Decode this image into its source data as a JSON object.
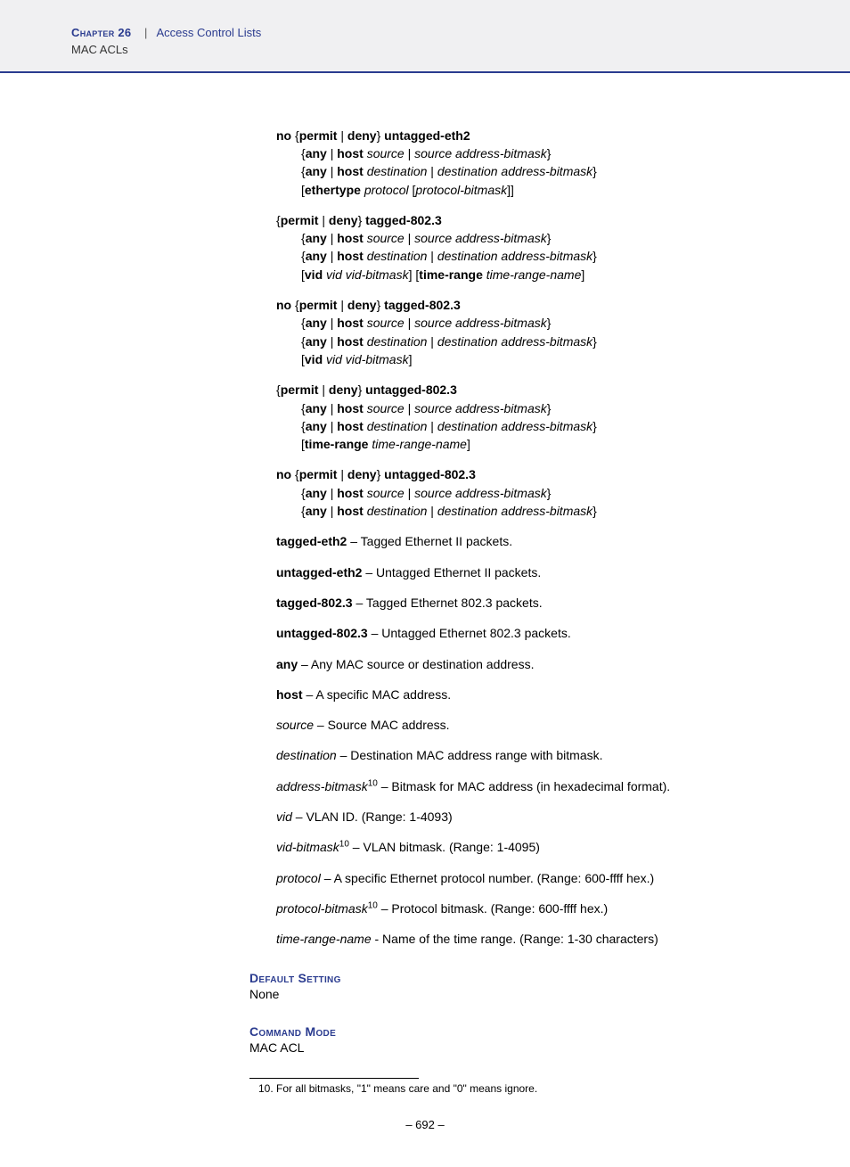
{
  "header": {
    "chapter": "Chapter 26",
    "divider": "|",
    "breadcrumb": "Access Control Lists",
    "subsection": "MAC ACLs"
  },
  "syntax": [
    {
      "lead": [
        {
          "t": "no ",
          "b": true
        },
        {
          "t": "{"
        },
        {
          "t": "permit",
          "b": true
        },
        {
          "t": " | "
        },
        {
          "t": "deny",
          "b": true
        },
        {
          "t": "} "
        },
        {
          "t": "untagged-eth2",
          "b": true
        }
      ],
      "lines": [
        [
          {
            "t": "{"
          },
          {
            "t": "any",
            "b": true
          },
          {
            "t": " | "
          },
          {
            "t": "host",
            "b": true
          },
          {
            "t": " "
          },
          {
            "t": "source",
            "i": true
          },
          {
            "t": " | "
          },
          {
            "t": "source address-bitmask",
            "i": true
          },
          {
            "t": "}"
          }
        ],
        [
          {
            "t": "{"
          },
          {
            "t": "any",
            "b": true
          },
          {
            "t": " | "
          },
          {
            "t": "host",
            "b": true
          },
          {
            "t": " "
          },
          {
            "t": "destination",
            "i": true
          },
          {
            "t": " | "
          },
          {
            "t": "destination address-bitmask",
            "i": true
          },
          {
            "t": "}"
          }
        ],
        [
          {
            "t": "["
          },
          {
            "t": "ethertype",
            "b": true
          },
          {
            "t": " "
          },
          {
            "t": "protocol",
            "i": true
          },
          {
            "t": " ["
          },
          {
            "t": "protocol-bitmask",
            "i": true
          },
          {
            "t": "]]"
          }
        ]
      ]
    },
    {
      "lead": [
        {
          "t": "{"
        },
        {
          "t": "permit",
          "b": true
        },
        {
          "t": " | "
        },
        {
          "t": "deny",
          "b": true
        },
        {
          "t": "} "
        },
        {
          "t": "tagged-802.3",
          "b": true
        }
      ],
      "lines": [
        [
          {
            "t": "{"
          },
          {
            "t": "any",
            "b": true
          },
          {
            "t": " | "
          },
          {
            "t": "host",
            "b": true
          },
          {
            "t": " "
          },
          {
            "t": "source",
            "i": true
          },
          {
            "t": " | "
          },
          {
            "t": "source address-bitmask",
            "i": true
          },
          {
            "t": "}"
          }
        ],
        [
          {
            "t": "{"
          },
          {
            "t": "any",
            "b": true
          },
          {
            "t": " | "
          },
          {
            "t": "host",
            "b": true
          },
          {
            "t": " "
          },
          {
            "t": "destination",
            "i": true
          },
          {
            "t": " | "
          },
          {
            "t": "destination address-bitmask",
            "i": true
          },
          {
            "t": "}"
          }
        ],
        [
          {
            "t": "["
          },
          {
            "t": "vid",
            "b": true
          },
          {
            "t": " "
          },
          {
            "t": "vid vid-bitmask",
            "i": true
          },
          {
            "t": "] ["
          },
          {
            "t": "time-range",
            "b": true
          },
          {
            "t": " "
          },
          {
            "t": "time-range-name",
            "i": true
          },
          {
            "t": "]"
          }
        ]
      ]
    },
    {
      "lead": [
        {
          "t": "no ",
          "b": true
        },
        {
          "t": "{"
        },
        {
          "t": "permit",
          "b": true
        },
        {
          "t": " | "
        },
        {
          "t": "deny",
          "b": true
        },
        {
          "t": "} "
        },
        {
          "t": "tagged-802.3",
          "b": true
        }
      ],
      "lines": [
        [
          {
            "t": "{"
          },
          {
            "t": "any",
            "b": true
          },
          {
            "t": " | "
          },
          {
            "t": "host",
            "b": true
          },
          {
            "t": " "
          },
          {
            "t": "source",
            "i": true
          },
          {
            "t": " | "
          },
          {
            "t": "source address-bitmask",
            "i": true
          },
          {
            "t": "}"
          }
        ],
        [
          {
            "t": "{"
          },
          {
            "t": "any",
            "b": true
          },
          {
            "t": " | "
          },
          {
            "t": "host",
            "b": true
          },
          {
            "t": " "
          },
          {
            "t": "destination",
            "i": true
          },
          {
            "t": " | "
          },
          {
            "t": "destination address-bitmask",
            "i": true
          },
          {
            "t": "}"
          }
        ],
        [
          {
            "t": "["
          },
          {
            "t": "vid",
            "b": true
          },
          {
            "t": " "
          },
          {
            "t": "vid vid-bitmask",
            "i": true
          },
          {
            "t": "]"
          }
        ]
      ]
    },
    {
      "lead": [
        {
          "t": "{"
        },
        {
          "t": "permit",
          "b": true
        },
        {
          "t": " | "
        },
        {
          "t": "deny",
          "b": true
        },
        {
          "t": "} "
        },
        {
          "t": "untagged-802.3",
          "b": true
        }
      ],
      "lines": [
        [
          {
            "t": "{"
          },
          {
            "t": "any",
            "b": true
          },
          {
            "t": " | "
          },
          {
            "t": "host",
            "b": true
          },
          {
            "t": " "
          },
          {
            "t": "source",
            "i": true
          },
          {
            "t": " | "
          },
          {
            "t": "source address-bitmask",
            "i": true
          },
          {
            "t": "}"
          }
        ],
        [
          {
            "t": "{"
          },
          {
            "t": "any",
            "b": true
          },
          {
            "t": " | "
          },
          {
            "t": "host",
            "b": true
          },
          {
            "t": " "
          },
          {
            "t": "destination",
            "i": true
          },
          {
            "t": " | "
          },
          {
            "t": "destination address-bitmask",
            "i": true
          },
          {
            "t": "}"
          }
        ],
        [
          {
            "t": "["
          },
          {
            "t": "time-range",
            "b": true
          },
          {
            "t": " "
          },
          {
            "t": "time-range-name",
            "i": true
          },
          {
            "t": "]"
          }
        ]
      ]
    },
    {
      "lead": [
        {
          "t": "no ",
          "b": true
        },
        {
          "t": "{"
        },
        {
          "t": "permit",
          "b": true
        },
        {
          "t": " | "
        },
        {
          "t": "deny",
          "b": true
        },
        {
          "t": "} "
        },
        {
          "t": "untagged-802.3",
          "b": true
        }
      ],
      "lines": [
        [
          {
            "t": "{"
          },
          {
            "t": "any",
            "b": true
          },
          {
            "t": " | "
          },
          {
            "t": "host",
            "b": true
          },
          {
            "t": " "
          },
          {
            "t": "source",
            "i": true
          },
          {
            "t": " | "
          },
          {
            "t": "source address-bitmask",
            "i": true
          },
          {
            "t": "}"
          }
        ],
        [
          {
            "t": "{"
          },
          {
            "t": "any",
            "b": true
          },
          {
            "t": " | "
          },
          {
            "t": "host",
            "b": true
          },
          {
            "t": " "
          },
          {
            "t": "destination",
            "i": true
          },
          {
            "t": " | "
          },
          {
            "t": "destination address-bitmask",
            "i": true
          },
          {
            "t": "}"
          }
        ]
      ]
    }
  ],
  "defs": [
    [
      {
        "t": "tagged-eth2",
        "b": true
      },
      {
        "t": " – Tagged Ethernet II packets."
      }
    ],
    [
      {
        "t": "untagged-eth2",
        "b": true
      },
      {
        "t": " – Untagged Ethernet II packets."
      }
    ],
    [
      {
        "t": "tagged-802.3",
        "b": true
      },
      {
        "t": " – Tagged Ethernet 802.3 packets."
      }
    ],
    [
      {
        "t": "untagged-802.3",
        "b": true
      },
      {
        "t": " – Untagged Ethernet 802.3 packets."
      }
    ],
    [
      {
        "t": "any",
        "b": true
      },
      {
        "t": " – Any MAC source or destination address."
      }
    ],
    [
      {
        "t": "host",
        "b": true
      },
      {
        "t": " – A specific MAC address."
      }
    ],
    [
      {
        "t": "source",
        "i": true
      },
      {
        "t": " – Source MAC address."
      }
    ],
    [
      {
        "t": "destination",
        "i": true
      },
      {
        "t": " – Destination MAC address range with bitmask."
      }
    ],
    [
      {
        "t": "address-bitmask",
        "i": true
      },
      {
        "t": "10",
        "sup": true
      },
      {
        "t": " – Bitmask for MAC address (in hexadecimal format)."
      }
    ],
    [
      {
        "t": "vid",
        "i": true
      },
      {
        "t": " – VLAN ID. (Range: 1-4093)"
      }
    ],
    [
      {
        "t": "vid-bitmask",
        "i": true
      },
      {
        "t": "10",
        "sup": true
      },
      {
        "t": " – VLAN bitmask. (Range: 1-4095)"
      }
    ],
    [
      {
        "t": "protocol",
        "i": true
      },
      {
        "t": " – A specific Ethernet protocol number. (Range: 600-ffff hex.)"
      }
    ],
    [
      {
        "t": "protocol-bitmask",
        "i": true
      },
      {
        "t": "10",
        "sup": true
      },
      {
        "t": " – Protocol bitmask. (Range: 600-ffff hex.)"
      }
    ],
    [
      {
        "t": "time-range-name",
        "i": true
      },
      {
        "t": " - Name of the time range. (Range: 1-30 characters)"
      }
    ]
  ],
  "sections": {
    "default_setting": {
      "heading": "Default Setting",
      "body": "None"
    },
    "command_mode": {
      "heading": "Command Mode",
      "body": "MAC ACL"
    }
  },
  "footnote": "10. For all bitmasks, \"1\" means care and \"0\" means ignore.",
  "page_number": "–  692  –"
}
